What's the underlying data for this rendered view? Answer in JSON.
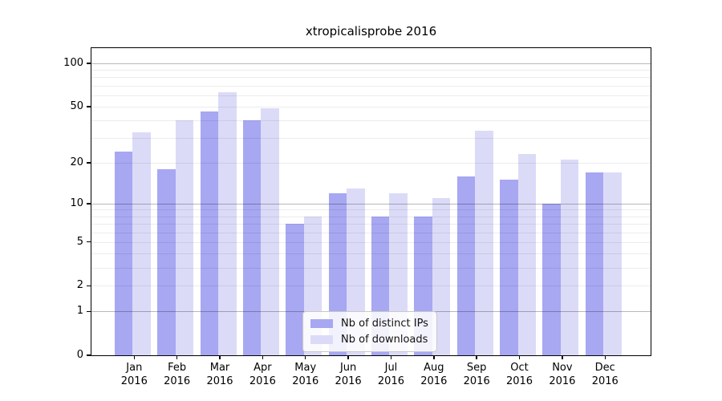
{
  "chart_data": {
    "type": "bar",
    "title": "xtropicalisprobe 2016",
    "xlabel": "",
    "ylabel": "",
    "categories": [
      "Jan",
      "Feb",
      "Mar",
      "Apr",
      "May",
      "Jun",
      "Jul",
      "Aug",
      "Sep",
      "Oct",
      "Nov",
      "Dec"
    ],
    "year_label": "2016",
    "series": [
      {
        "name": "Nb of distinct IPs",
        "color": "#a7a7f2",
        "values": [
          24,
          18,
          46,
          40,
          7,
          12,
          8,
          8,
          16,
          15,
          10,
          17
        ]
      },
      {
        "name": "Nb of downloads",
        "color": "#dbdbf8",
        "values": [
          33,
          40,
          63,
          49,
          8,
          13,
          12,
          11,
          34,
          23,
          21,
          17
        ]
      }
    ],
    "yscale": "log1p",
    "ylim": [
      0,
      127
    ],
    "yticks": [
      0,
      1,
      2,
      5,
      10,
      20,
      50,
      100
    ],
    "major_gridlines": [
      1,
      10,
      100
    ],
    "minor_gridlines": [
      2,
      3,
      4,
      5,
      6,
      7,
      8,
      9,
      20,
      30,
      40,
      50,
      60,
      70,
      80,
      90
    ],
    "grid": "on",
    "legend_position": "lower center",
    "colors": {
      "axis": "#000000",
      "major_grid": "rgba(0,0,0,0.28)",
      "minor_grid": "rgba(0,0,0,0.075)",
      "background": "#ffffff"
    }
  }
}
